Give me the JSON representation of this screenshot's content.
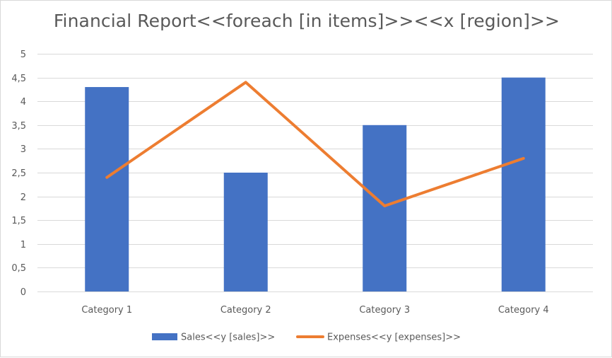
{
  "chart_data": {
    "type": "bar",
    "title": "Financial Report<<foreach [in items]>><<x [region]>>",
    "categories": [
      "Category 1",
      "Category 2",
      "Category 3",
      "Category 4"
    ],
    "series": [
      {
        "name": "Sales<<y [sales]>>",
        "type": "bar",
        "color": "#4472c4",
        "values": [
          4.3,
          2.5,
          3.5,
          4.5
        ]
      },
      {
        "name": "Expenses<<y [expenses]>>",
        "type": "line",
        "color": "#ed7d31",
        "values": [
          2.4,
          4.4,
          1.8,
          2.8
        ]
      }
    ],
    "ylim": [
      0,
      5
    ],
    "yticks": [
      "0",
      "0,5",
      "1",
      "1,5",
      "2",
      "2,5",
      "3",
      "3,5",
      "4",
      "4,5",
      "5"
    ],
    "ytick_values": [
      0,
      0.5,
      1,
      1.5,
      2,
      2.5,
      3,
      3.5,
      4,
      4.5,
      5
    ],
    "grid": true,
    "legend": "bottom",
    "gridline_color": "#d9d9d9"
  }
}
